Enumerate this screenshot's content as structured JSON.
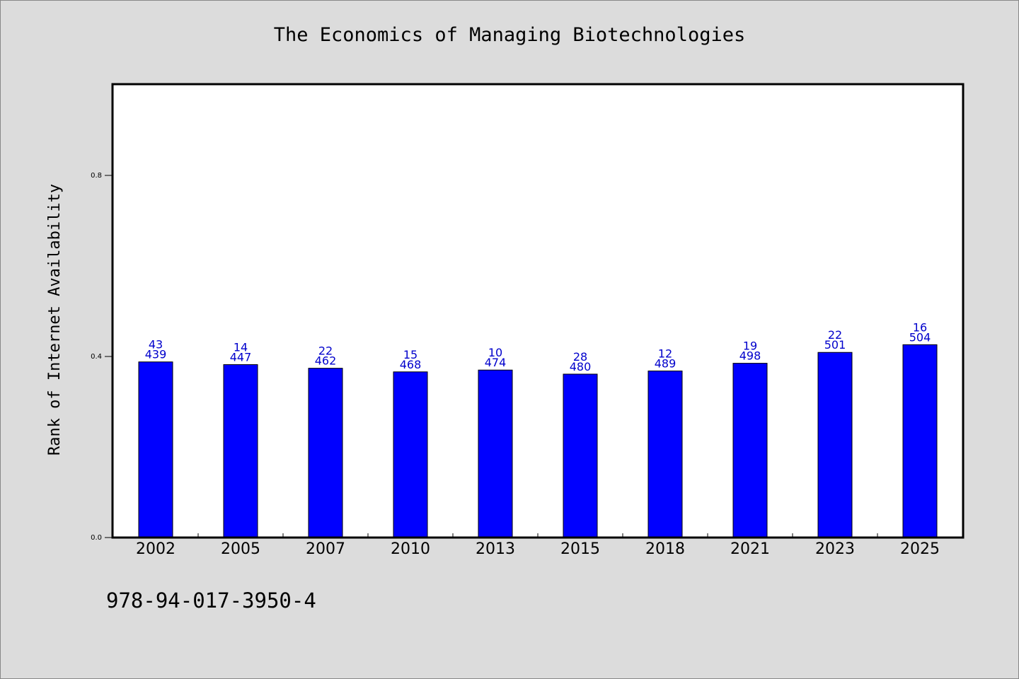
{
  "chart_data": {
    "type": "bar",
    "title": "The Economics of Managing Biotechnologies",
    "xlabel": "",
    "ylabel": "Rank of Internet Availability",
    "ylim": [
      0,
      1.0
    ],
    "yticks": [
      "0.0",
      "0.4",
      "0.8"
    ],
    "grid": false,
    "categories": [
      "2002",
      "2005",
      "2007",
      "2010",
      "2013",
      "2015",
      "2018",
      "2021",
      "2023",
      "2025"
    ],
    "values": [
      0.388,
      0.382,
      0.374,
      0.366,
      0.37,
      0.361,
      0.368,
      0.385,
      0.409,
      0.426
    ],
    "label_top": [
      "43",
      "14",
      "22",
      "15",
      "10",
      "28",
      "12",
      "19",
      "22",
      "16"
    ],
    "label_bottom": [
      "439",
      "447",
      "462",
      "468",
      "474",
      "480",
      "489",
      "498",
      "501",
      "504"
    ],
    "bar_color": "#0000ff",
    "label_color": "#0000cc"
  },
  "footer": {
    "isbn": "978-94-017-3950-4"
  }
}
